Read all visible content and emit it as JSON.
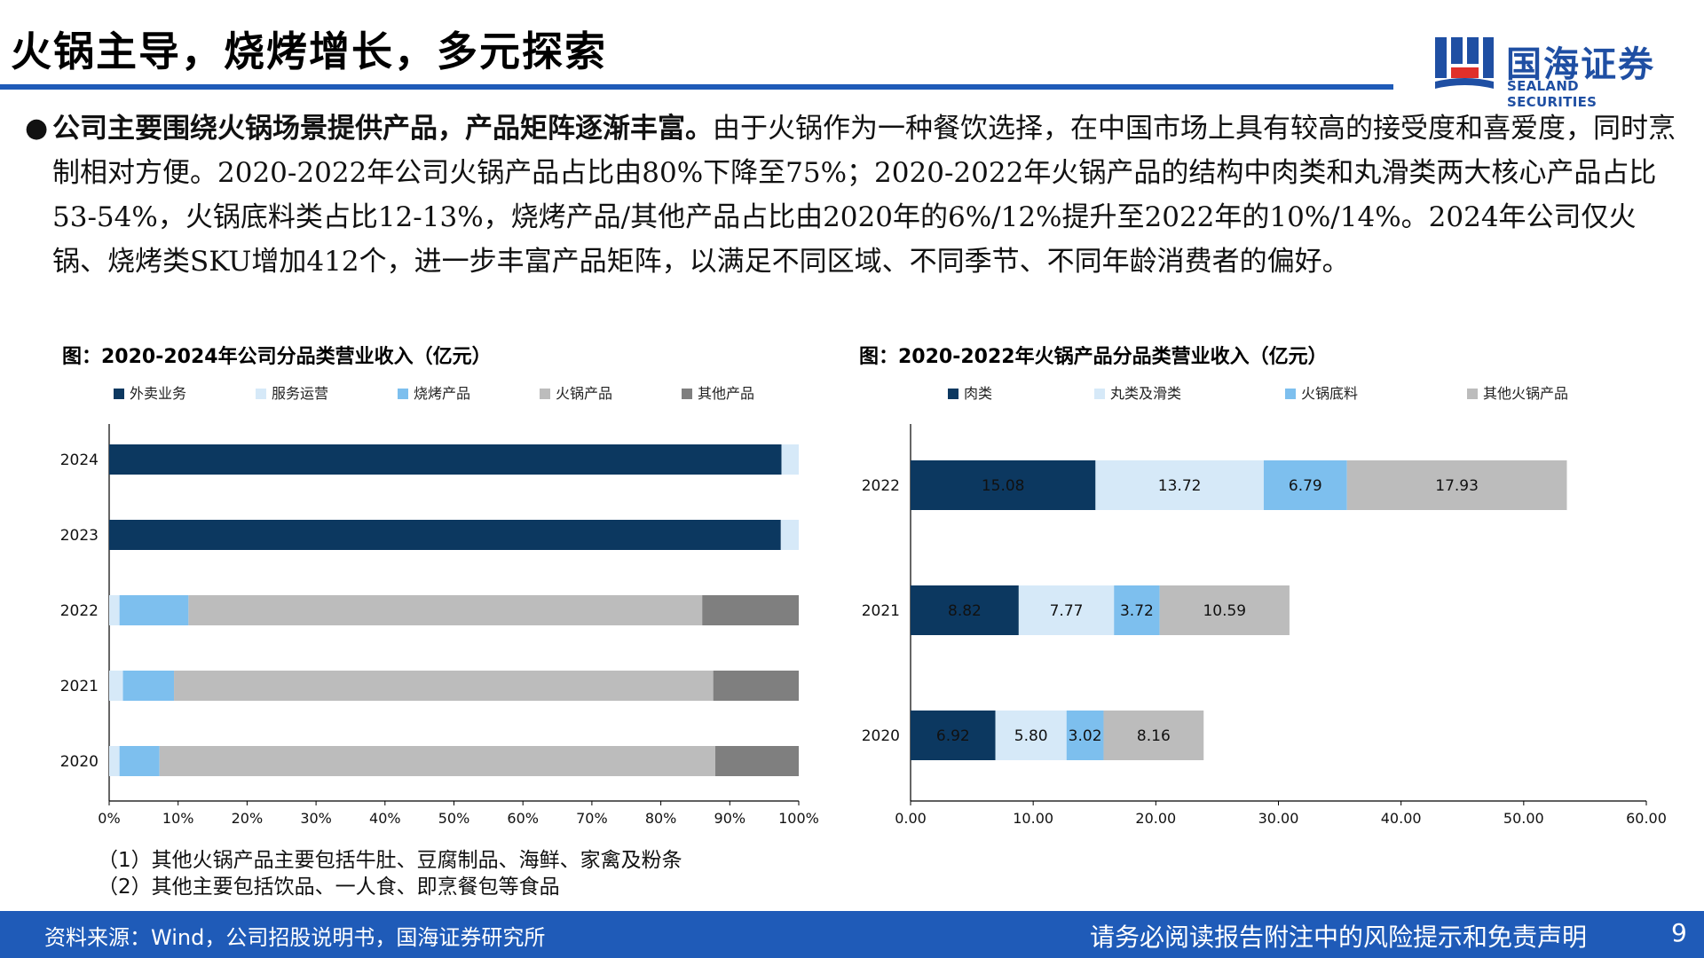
{
  "header": {
    "title": "火锅主导，烧烤增长，多元探索",
    "logo_cn": "国海证券",
    "logo_en": "SEALAND SECURITIES"
  },
  "bullet": {
    "bold": "公司主要围绕火锅场景提供产品，产品矩阵逐渐丰富。",
    "text": "由于火锅作为一种餐饮选择，在中国市场上具有较高的接受度和喜爱度，同时烹制相对方便。2020-2022年公司火锅产品占比由80%下降至75%；2020-2022年火锅产品的结构中肉类和丸滑类两大核心产品占比53-54%，火锅底料类占比12-13%，烧烤产品/其他产品占比由2020年的6%/12%提升至2022年的10%/14%。2024年公司仅火锅、烧烤类SKU增加412个，进一步丰富产品矩阵，以满足不同区域、不同季节、不同年龄消费者的偏好。"
  },
  "notes": [
    "（1）其他火锅产品主要包括牛肚、豆腐制品、海鲜、家禽及粉条",
    "（2）其他主要包括饮品、一人食、即烹餐包等食品"
  ],
  "footer": {
    "source": "资料来源：Wind，公司招股说明书，国海证券研究所",
    "disclaimer": "请务必阅读报告附注中的风险提示和免责声明",
    "page": "9"
  },
  "chart_data": [
    {
      "type": "bar",
      "orientation": "horizontal",
      "stacked": "percent",
      "title": "图：2020-2024年公司分品类营业收入（亿元）",
      "categories": [
        "2024",
        "2023",
        "2022",
        "2021",
        "2020"
      ],
      "xlim": [
        0,
        100
      ],
      "xticks": [
        "0%",
        "10%",
        "20%",
        "30%",
        "40%",
        "50%",
        "60%",
        "70%",
        "80%",
        "90%",
        "100%"
      ],
      "legend_position": "top",
      "series": [
        {
          "name": "外卖业务",
          "color": "#0c3860",
          "values": [
            97.5,
            97.4,
            0,
            0,
            0
          ]
        },
        {
          "name": "服务运营",
          "color": "#d6e9f8",
          "values": [
            2.5,
            2.6,
            1.5,
            2.0,
            1.5
          ]
        },
        {
          "name": "烧烤产品",
          "color": "#7dbfee",
          "values": [
            0,
            0,
            10.0,
            7.4,
            5.8
          ]
        },
        {
          "name": "火锅产品",
          "color": "#bcbcbc",
          "values": [
            0,
            0,
            74.5,
            78.2,
            80.6
          ]
        },
        {
          "name": "其他产品",
          "color": "#7f7f7f",
          "values": [
            0,
            0,
            14.0,
            12.4,
            12.1
          ]
        }
      ]
    },
    {
      "type": "bar",
      "orientation": "horizontal",
      "stacked": "value",
      "title": "图：2020-2022年火锅产品分品类营业收入（亿元）",
      "categories": [
        "2022",
        "2021",
        "2020"
      ],
      "xlim": [
        0,
        60
      ],
      "xticks": [
        "0.00",
        "10.00",
        "20.00",
        "30.00",
        "40.00",
        "50.00",
        "60.00"
      ],
      "legend_position": "top",
      "series": [
        {
          "name": "肉类",
          "color": "#0c3860",
          "values": [
            15.08,
            8.82,
            6.92
          ],
          "labels": [
            "15.08",
            "8.82",
            "6.92"
          ]
        },
        {
          "name": "丸类及滑类",
          "color": "#d6e9f8",
          "values": [
            13.72,
            7.77,
            5.8
          ],
          "labels": [
            "13.72",
            "7.77",
            "5.80"
          ]
        },
        {
          "name": "火锅底料",
          "color": "#7dbfee",
          "values": [
            6.79,
            3.72,
            3.02
          ],
          "labels": [
            "6.79",
            "3.72",
            "3.02"
          ]
        },
        {
          "name": "其他火锅产品",
          "color": "#bcbcbc",
          "values": [
            17.93,
            10.59,
            8.16
          ],
          "labels": [
            "17.93",
            "10.59",
            "8.16"
          ]
        }
      ]
    }
  ]
}
